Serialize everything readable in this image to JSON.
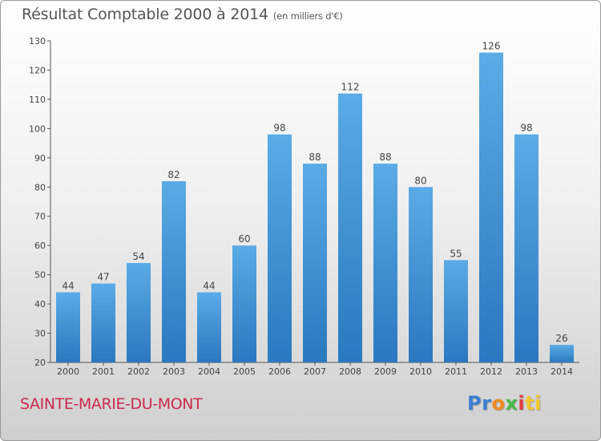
{
  "header": {
    "title": "Résultat Comptable 2000 à 2014",
    "subtitle": "(en milliers d'€)"
  },
  "footer": {
    "place_name": "SAINTE-MARIE-DU-MONT",
    "logo": [
      "Pr",
      "o",
      "x",
      "i",
      "ti"
    ]
  },
  "colors": {
    "bar_light": "#5aabe6",
    "bar_dark": "#2a78bf",
    "axis": "#555555",
    "place_text": "#cc2a4d"
  },
  "chart_data": {
    "type": "bar",
    "title": "Résultat Comptable 2000 à 2014",
    "subtitle": "(en milliers d'€)",
    "categories": [
      "2000",
      "2001",
      "2002",
      "2003",
      "2004",
      "2005",
      "2006",
      "2007",
      "2008",
      "2009",
      "2010",
      "2011",
      "2012",
      "2013",
      "2014"
    ],
    "values": [
      44,
      47,
      54,
      82,
      44,
      60,
      98,
      88,
      112,
      88,
      80,
      55,
      126,
      98,
      26
    ],
    "ylim": [
      20,
      130
    ],
    "yticks": [
      20,
      30,
      40,
      50,
      60,
      70,
      80,
      90,
      100,
      110,
      120,
      130
    ],
    "grid": false,
    "data_labels": true
  }
}
